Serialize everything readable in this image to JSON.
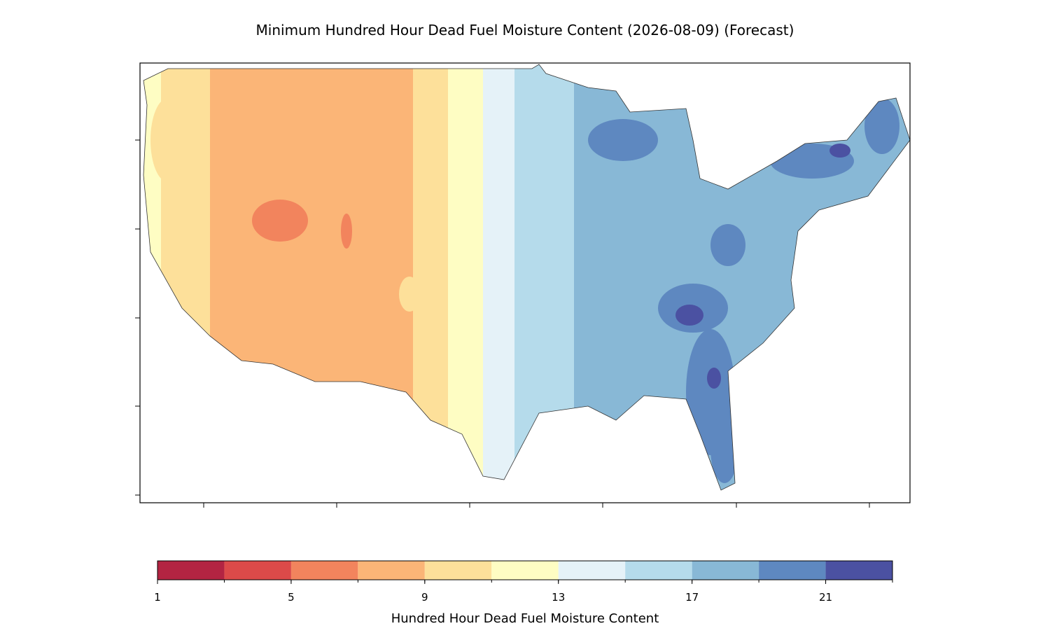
{
  "title": "Minimum Hundred Hour Dead Fuel Moisture Content (2026-08-09) (Forecast)",
  "colorbar": {
    "label": "Hundred Hour Dead Fuel Moisture Content",
    "levels": [
      1,
      3,
      5,
      7,
      9,
      11,
      13,
      15,
      17,
      19,
      21,
      23
    ],
    "colors": [
      "#b32442",
      "#dc4a49",
      "#f2845d",
      "#fbb577",
      "#fde09a",
      "#fefdc3",
      "#e5f2f8",
      "#b5dbeb",
      "#88b8d6",
      "#5e88c0",
      "#4b51a2"
    ],
    "ticks": [
      1,
      5,
      9,
      13,
      17,
      21
    ]
  }
}
